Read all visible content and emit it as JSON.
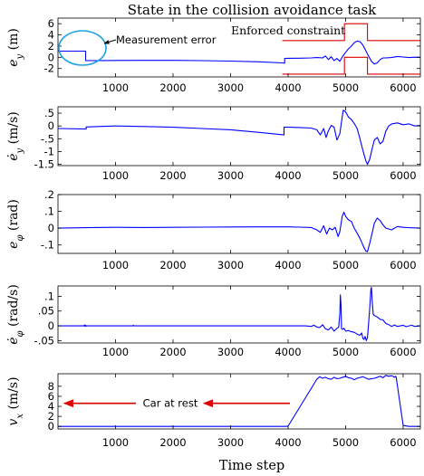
{
  "chart_data": {
    "title": "State in the collision avoidance task",
    "xlabel": "Time step",
    "xlim": [
      0,
      6300
    ],
    "xticks": [
      1000,
      2000,
      3000,
      4000,
      5000,
      6000
    ],
    "colors": {
      "state": "#0000ff",
      "constraint": "#dd0000",
      "ellipse": "#1ea0e6",
      "arrow": "#dd0000"
    },
    "panels": [
      {
        "type": "line",
        "ylabel": "e_y (m)",
        "ylabel_parts": {
          "main": "e",
          "sub": "y",
          "unit": " (m)"
        },
        "ylim": [
          -3.5,
          7
        ],
        "yticks": [
          -2,
          0,
          2,
          4,
          6
        ],
        "series": [
          {
            "x": [
              0,
              480,
              480,
              500,
              800,
              1500,
              2000,
              2500,
              3000,
              3500,
              3900,
              3940,
              3940,
              4000,
              4200,
              4400,
              4500,
              4600,
              4650,
              4700,
              4750,
              4800,
              4850,
              4900,
              4950,
              5000,
              5050,
              5100,
              5150,
              5200,
              5250,
              5300,
              5350,
              5400,
              5450,
              5500,
              5550,
              5600,
              5650,
              5700,
              5800,
              5900,
              6000,
              6100,
              6200,
              6300
            ],
            "y": [
              1.1,
              1.1,
              -0.6,
              -0.6,
              -0.58,
              -0.55,
              -0.55,
              -0.6,
              -0.68,
              -0.8,
              -1.0,
              -1.05,
              -0.2,
              -0.18,
              -0.15,
              -0.1,
              -0.05,
              -0.1,
              0.25,
              -0.4,
              0.1,
              -0.6,
              -0.2,
              -0.7,
              0.2,
              0.9,
              1.5,
              2.0,
              2.6,
              2.9,
              2.8,
              2.2,
              1.2,
              0.2,
              -0.7,
              -1.2,
              -1.0,
              -0.4,
              -0.1,
              -0.1,
              -0.05,
              0.15,
              0.05,
              -0.05,
              0.02,
              0.0
            ]
          }
        ],
        "constraint": {
          "upper": {
            "x": [
              3900,
              4980,
              4980,
              5380,
              5380,
              6300
            ],
            "y": [
              3,
              3,
              6,
              6,
              3,
              3
            ]
          },
          "lower": {
            "x": [
              3900,
              4980,
              4980,
              5380,
              5380,
              6300
            ],
            "y": [
              -3,
              -3,
              0,
              0,
              -3,
              -3
            ]
          }
        },
        "annotations": {
          "measurement_error": "Measurement error",
          "enforced_constraint": "Enforced constraint"
        }
      },
      {
        "type": "line",
        "ylabel": "ė_y (m/s)",
        "ylabel_parts": {
          "main": "ė",
          "sub": "y",
          "unit": " (m/s)"
        },
        "ylim": [
          -1.55,
          0.75
        ],
        "yticks": [
          -1.5,
          -1,
          -0.5,
          0,
          0.5
        ],
        "series": [
          {
            "x": [
              0,
              490,
              490,
              700,
              1000,
              1500,
              2000,
              2500,
              3000,
              3500,
              3930,
              3930,
              4000,
              4200,
              4400,
              4500,
              4560,
              4620,
              4660,
              4700,
              4750,
              4800,
              4850,
              4900,
              4940,
              4960,
              5000,
              5050,
              5100,
              5150,
              5200,
              5250,
              5300,
              5350,
              5380,
              5420,
              5460,
              5500,
              5550,
              5600,
              5650,
              5700,
              5750,
              5800,
              5900,
              6000,
              6100,
              6200,
              6300
            ],
            "y": [
              -0.1,
              -0.12,
              -0.04,
              -0.02,
              0.0,
              -0.02,
              -0.05,
              -0.1,
              -0.15,
              -0.25,
              -0.35,
              -0.05,
              -0.05,
              -0.06,
              -0.08,
              -0.15,
              -0.35,
              -0.1,
              -0.45,
              -0.2,
              0.02,
              -0.05,
              -0.55,
              -0.3,
              0.35,
              0.62,
              0.55,
              0.35,
              0.25,
              0.1,
              -0.1,
              -0.5,
              -0.95,
              -1.35,
              -1.5,
              -1.3,
              -0.9,
              -0.55,
              -0.45,
              -0.7,
              -0.6,
              -0.2,
              0.0,
              0.08,
              0.12,
              0.05,
              0.08,
              0.0,
              0.02
            ]
          }
        ]
      },
      {
        "type": "line",
        "ylabel": "e_φ (rad)",
        "ylabel_parts": {
          "main": "e",
          "sub": "φ",
          "unit": " (rad)"
        },
        "ylim": [
          -0.15,
          0.2
        ],
        "yticks": [
          -0.1,
          0,
          0.1,
          0.2
        ],
        "series": [
          {
            "x": [
              0,
              500,
              1000,
              1500,
              2000,
              2500,
              3000,
              3500,
              4000,
              4200,
              4400,
              4500,
              4560,
              4620,
              4670,
              4720,
              4770,
              4820,
              4870,
              4900,
              4940,
              4970,
              5000,
              5050,
              5100,
              5150,
              5200,
              5250,
              5300,
              5350,
              5380,
              5420,
              5460,
              5500,
              5550,
              5600,
              5650,
              5700,
              5800,
              5900,
              6000,
              6100,
              6200,
              6300
            ],
            "y": [
              0.0,
              0.003,
              0.005,
              0.004,
              0.005,
              0.006,
              0.007,
              0.008,
              0.008,
              0.006,
              0.004,
              -0.01,
              -0.025,
              0.015,
              -0.035,
              0.0,
              -0.01,
              0.005,
              -0.05,
              -0.02,
              0.07,
              0.095,
              0.07,
              0.05,
              0.04,
              0.0,
              -0.03,
              -0.06,
              -0.1,
              -0.135,
              -0.14,
              -0.09,
              -0.03,
              0.03,
              0.06,
              0.045,
              0.02,
              0.0,
              -0.01,
              0.01,
              0.005,
              0.003,
              0.002,
              0.0
            ]
          }
        ]
      },
      {
        "type": "line",
        "ylabel": "ė_φ (rad/s)",
        "ylabel_parts": {
          "main": "ė",
          "sub": "φ",
          "unit": " (rad/s)"
        },
        "ylim": [
          -0.058,
          0.135
        ],
        "yticks": [
          -0.05,
          0,
          0.05,
          0.1
        ],
        "series": [
          {
            "x": [
              0,
              450,
              460,
              470,
              480,
              490,
              500,
              1000,
              1300,
              1310,
              1320,
              2000,
              3000,
              4000,
              4300,
              4400,
              4450,
              4500,
              4550,
              4600,
              4650,
              4700,
              4750,
              4800,
              4850,
              4880,
              4900,
              4910,
              4920,
              4930,
              4950,
              4970,
              5000,
              5050,
              5100,
              5150,
              5200,
              5250,
              5280,
              5300,
              5320,
              5340,
              5360,
              5380,
              5400,
              5420,
              5440,
              5450,
              5460,
              5480,
              5500,
              5550,
              5600,
              5650,
              5700,
              5750,
              5800,
              5850,
              5900,
              6000,
              6050,
              6100,
              6150,
              6200,
              6300
            ],
            "y": [
              0.0,
              0.0,
              0.003,
              -0.002,
              0.002,
              -0.001,
              0.0,
              0.0,
              0.0,
              0.002,
              0.0,
              0.0,
              0.0,
              0.0,
              0.0,
              -0.002,
              0.002,
              -0.004,
              -0.006,
              0.004,
              -0.01,
              -0.014,
              -0.004,
              -0.018,
              -0.008,
              -0.005,
              0.04,
              0.105,
              0.07,
              -0.01,
              -0.012,
              -0.008,
              -0.018,
              -0.016,
              -0.02,
              -0.022,
              -0.028,
              -0.032,
              -0.024,
              -0.042,
              -0.046,
              -0.036,
              -0.05,
              -0.04,
              0.01,
              0.06,
              0.125,
              0.13,
              0.09,
              0.04,
              0.035,
              0.03,
              0.022,
              0.02,
              0.008,
              0.004,
              -0.002,
              0.003,
              -0.002,
              0.002,
              -0.003,
              0.0,
              0.002,
              -0.002,
              0.0
            ]
          }
        ]
      },
      {
        "type": "line",
        "ylabel": "v_x (m/s)",
        "ylabel_parts": {
          "main": "v",
          "sub": "x",
          "unit": " (m/s)"
        },
        "ylim": [
          -0.5,
          10.5
        ],
        "yticks": [
          0,
          2,
          4,
          6,
          8
        ],
        "series": [
          {
            "x": [
              0,
              1000,
              2000,
              3000,
              3960,
              4000,
              4500,
              4550,
              4600,
              4650,
              4700,
              4750,
              4800,
              4850,
              4900,
              5000,
              5050,
              5100,
              5150,
              5200,
              5300,
              5400,
              5500,
              5600,
              5650,
              5700,
              5750,
              5800,
              5850,
              5870,
              5880,
              6000,
              6100,
              6200,
              6300
            ],
            "y": [
              0.0,
              0.0,
              0.0,
              0.0,
              0.0,
              0.05,
              9.4,
              9.9,
              9.6,
              9.8,
              9.5,
              9.4,
              9.8,
              9.5,
              9.6,
              10.0,
              9.7,
              9.6,
              9.3,
              9.6,
              9.9,
              9.4,
              9.6,
              10.0,
              9.7,
              10.2,
              10.0,
              10.1,
              9.8,
              10.0,
              9.8,
              0.2,
              0.0,
              0.0,
              0.0
            ]
          }
        ],
        "annotations": {
          "car_at_rest": "Car at rest"
        }
      }
    ]
  }
}
